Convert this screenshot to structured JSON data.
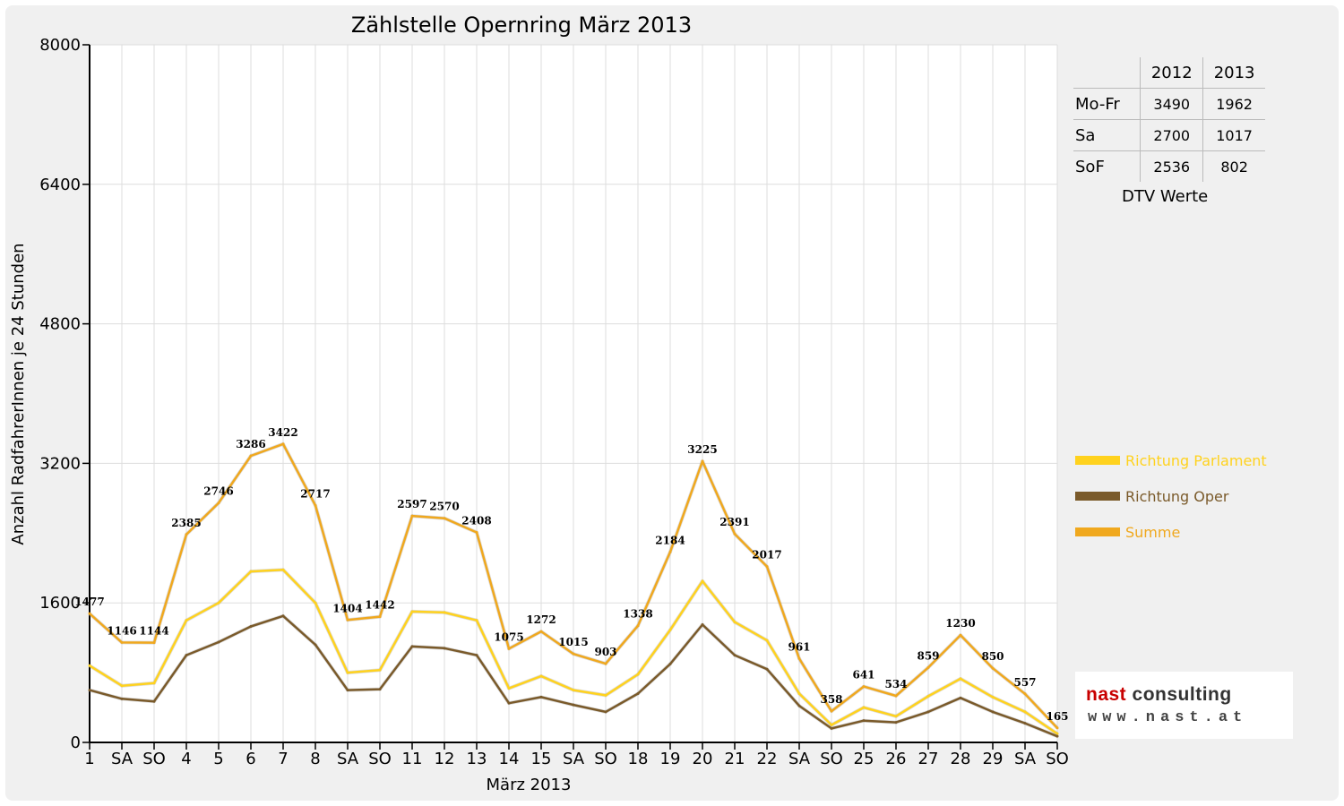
{
  "chart_data": {
    "type": "line",
    "title": "Zählstelle Opernring März 2013",
    "xlabel": "März 2013",
    "ylabel": "Anzahl RadfahrerInnen je 24 Stunden",
    "ylim": [
      0,
      8000
    ],
    "yticks": [
      "0",
      "1600",
      "3200",
      "4800",
      "6400",
      "8000"
    ],
    "categories": [
      "1",
      "SA",
      "SO",
      "4",
      "5",
      "6",
      "7",
      "8",
      "SA",
      "SO",
      "11",
      "12",
      "13",
      "14",
      "15",
      "SA",
      "SO",
      "18",
      "19",
      "20",
      "21",
      "22",
      "SA",
      "SO",
      "25",
      "26",
      "27",
      "28",
      "29",
      "SA",
      "SO"
    ],
    "weekend_categories": [
      "SO"
    ],
    "grid": true,
    "legend_position": "right",
    "series": [
      {
        "name": "Richtung Parlament",
        "color": "#ffd21e",
        "values": [
          880,
          650,
          680,
          1400,
          1600,
          1960,
          1980,
          1600,
          800,
          830,
          1500,
          1490,
          1400,
          620,
          760,
          600,
          540,
          780,
          1290,
          1850,
          1380,
          1170,
          560,
          200,
          400,
          300,
          530,
          730,
          520,
          350,
          100
        ]
      },
      {
        "name": "Richtung Oper",
        "color": "#7a5a2a",
        "values": [
          600,
          500,
          470,
          1000,
          1150,
          1330,
          1450,
          1120,
          600,
          610,
          1100,
          1080,
          1000,
          450,
          520,
          430,
          350,
          560,
          900,
          1350,
          1000,
          840,
          420,
          160,
          250,
          230,
          350,
          510,
          350,
          220,
          70
        ]
      },
      {
        "name": "Summe",
        "color": "#f0a81e",
        "values": [
          1477,
          1146,
          1144,
          2385,
          2746,
          3286,
          3422,
          2717,
          1404,
          1442,
          2597,
          2570,
          2408,
          1075,
          1272,
          1015,
          903,
          1338,
          2184,
          3225,
          2391,
          2017,
          961,
          358,
          641,
          534,
          859,
          1230,
          850,
          557,
          165
        ],
        "labels": [
          "1477",
          "1146",
          "1144",
          "2385",
          "2746",
          "3286",
          "3422",
          "2717",
          "1404",
          "1442",
          "2597",
          "2570",
          "2408",
          "1075",
          "1272",
          "1015",
          "903",
          "1338",
          "2184",
          "3225",
          "2391",
          "2017",
          "961",
          "358",
          "641",
          "534",
          "859",
          "1230",
          "850",
          "557",
          "165"
        ]
      }
    ]
  },
  "dtv_table": {
    "caption": "DTV Werte",
    "header": [
      "",
      "2012",
      "2013"
    ],
    "rows": [
      [
        "Mo-Fr",
        "3490",
        "1962"
      ],
      [
        "Sa",
        "2700",
        "1017"
      ],
      [
        "SoF",
        "2536",
        "802"
      ]
    ]
  },
  "legend": [
    {
      "label": "Richtung Parlament",
      "color": "#ffd21e"
    },
    {
      "label": "Richtung Oper",
      "color": "#7a5a2a"
    },
    {
      "label": "Summe",
      "color": "#f0a81e"
    }
  ],
  "logo": {
    "name_part1": "nast",
    "name_part2": " consulting",
    "url": "www.nast.at"
  }
}
